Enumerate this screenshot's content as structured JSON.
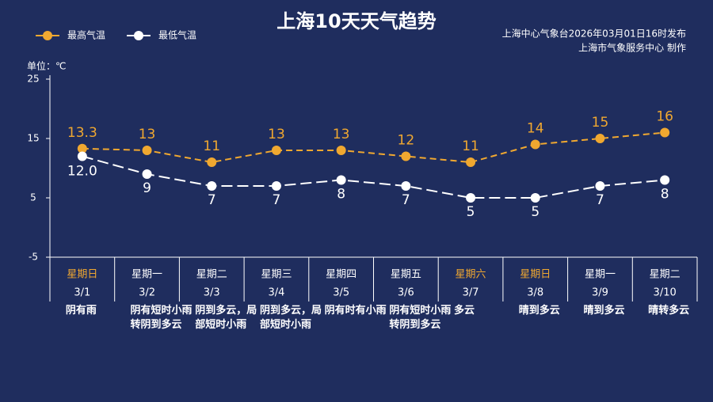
{
  "chart_data": {
    "type": "line",
    "title": "上海10天天气趋势",
    "subtitle": [
      "上海中心气象台2026年03月01日16时发布",
      "上海市气象服务中心 制作"
    ],
    "y_unit_label": "单位：℃",
    "categories": [
      "3/1",
      "3/2",
      "3/3",
      "3/4",
      "3/5",
      "3/6",
      "3/7",
      "3/8",
      "3/9",
      "3/10"
    ],
    "weekdays": [
      "星期日",
      "星期一",
      "星期二",
      "星期三",
      "星期四",
      "星期五",
      "星期六",
      "星期日",
      "星期一",
      "星期二"
    ],
    "weekday_colors": [
      "#f0a830",
      "#ffffff",
      "#ffffff",
      "#ffffff",
      "#ffffff",
      "#ffffff",
      "#f0a830",
      "#f0a830",
      "#ffffff",
      "#ffffff"
    ],
    "weather": [
      "阴有雨",
      "阴有短时小雨转阴到多云",
      "阴到多云，局部短时小雨",
      "阴到多云，局部短时小雨",
      "阴有时有小雨",
      "阴有短时小雨转阴到多云",
      "多云",
      "晴到多云",
      "晴到多云",
      "晴转多云"
    ],
    "series": [
      {
        "name": "最高气温",
        "color": "#f0a830",
        "values": [
          13.3,
          13,
          11,
          13,
          13,
          12,
          11,
          14,
          15,
          16
        ]
      },
      {
        "name": "最低气温",
        "color": "#ffffff",
        "values": [
          12,
          9,
          7,
          7,
          8,
          7,
          5,
          5,
          7,
          8
        ],
        "value_labels": [
          "12.0",
          "9",
          "7",
          "7",
          "8",
          "7",
          "5",
          "5",
          "7",
          "8"
        ]
      }
    ],
    "ylim": [
      -5,
      25
    ],
    "yticks": [
      -5,
      5,
      15,
      25
    ],
    "legend": "top-left"
  }
}
